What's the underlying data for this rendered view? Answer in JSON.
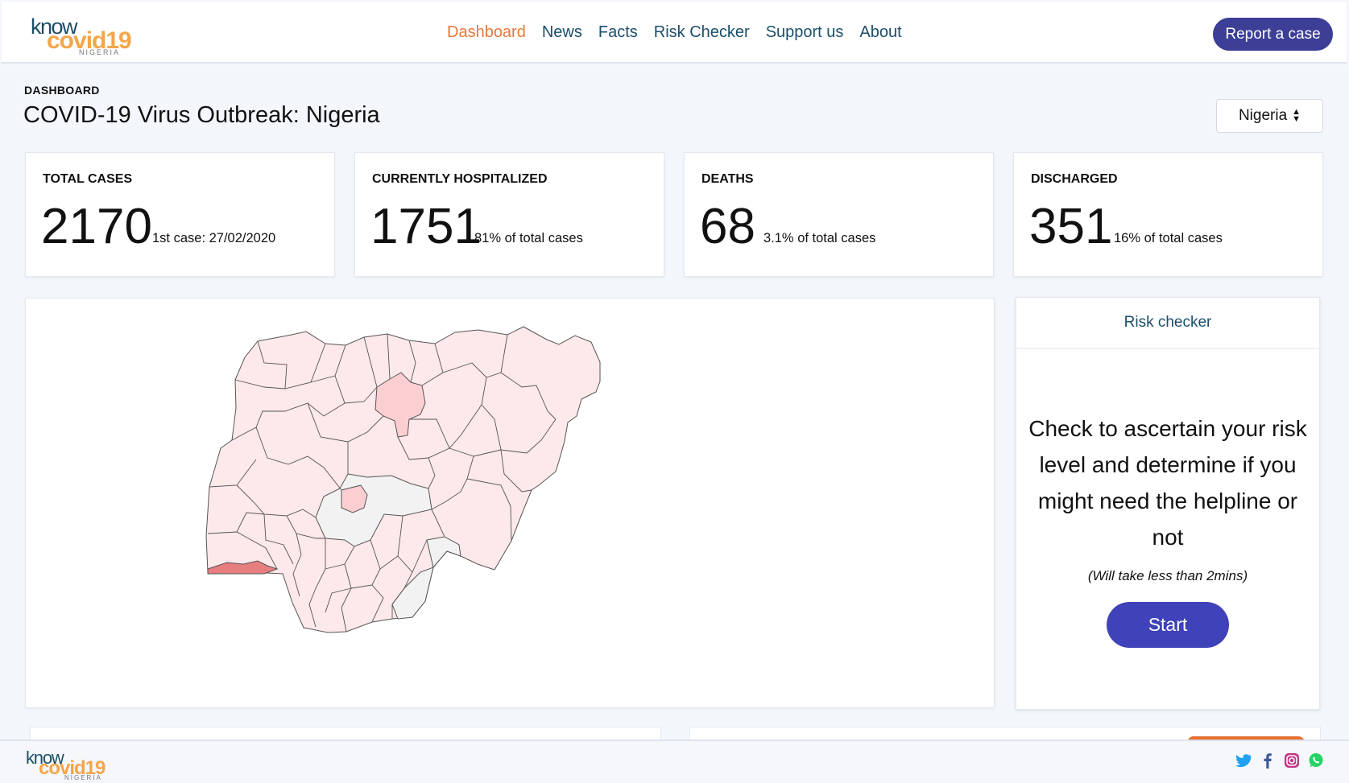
{
  "logo": {
    "know": "know",
    "covid": "covid19",
    "country": "NIGERIA"
  },
  "nav": {
    "items": [
      "Dashboard",
      "News",
      "Facts",
      "Risk Checker",
      "Support us",
      "About"
    ],
    "active": "Dashboard"
  },
  "header": {
    "report_button": "Report a case"
  },
  "page": {
    "breadcrumb": "DASHBOARD",
    "title": "COVID-19 Virus Outbreak: Nigeria",
    "country_select": "Nigeria"
  },
  "stats": [
    {
      "label": "TOTAL CASES",
      "value": "2170",
      "sub": "1st case: 27/02/2020"
    },
    {
      "label": "CURRENTLY HOSPITALIZED",
      "value": "1751",
      "sub": "81% of total cases"
    },
    {
      "label": "DEATHS",
      "value": "68",
      "sub": "3.1% of total cases"
    },
    {
      "label": "DISCHARGED",
      "value": "351",
      "sub": "16% of total cases"
    }
  ],
  "risk": {
    "title": "Risk checker",
    "text": "Check to ascertain your risk level and determine if you might need the helpline or not",
    "note": "(Will take less than 2mins)",
    "button": "Start"
  },
  "map": {
    "colors": {
      "low": "#fde8ea",
      "none": "#f2f2f2",
      "medium": "#fbcfd2",
      "high": "#e77d7f",
      "border": "#555555"
    }
  },
  "social": [
    "twitter-icon",
    "facebook-icon",
    "instagram-icon",
    "whatsapp-icon"
  ]
}
